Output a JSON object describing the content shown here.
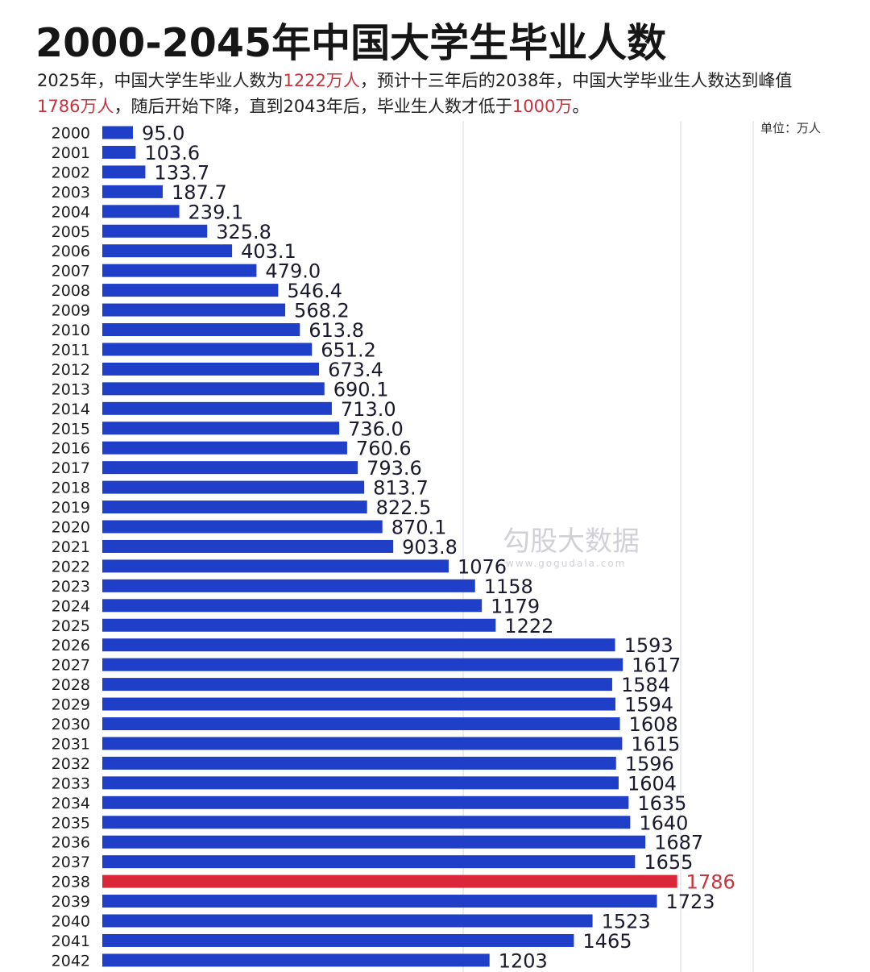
{
  "title": "2000-2045年中国大学生毕业人数",
  "subtitle": {
    "p1": "2025年，中国大学生毕业人数为",
    "h1": "1222万人",
    "p2": "，预计十三年后的2038年，中国大学毕业生人数达到峰值",
    "h2": "1786万人",
    "p3": "，随后开始下降，直到2043年后，毕业生人数才低于",
    "h3": "1000万",
    "p4": "。"
  },
  "unit": "单位：万人",
  "watermark": {
    "text": "勾股大数据",
    "sub": "www.gogudala.com"
  },
  "colors": {
    "bar": "#1f3fc8",
    "highlight": "#d8283a",
    "highlight_text": "#c8333c",
    "grid": "#e3e6ee"
  },
  "chart_data": {
    "type": "bar",
    "orientation": "horizontal",
    "title": "2000-2045年中国大学生毕业人数",
    "unit": "万人",
    "xlim": [
      0,
      2000
    ],
    "grid": true,
    "highlight": "2038",
    "categories": [
      "2000",
      "2001",
      "2002",
      "2003",
      "2004",
      "2005",
      "2006",
      "2007",
      "2008",
      "2009",
      "2010",
      "2011",
      "2012",
      "2013",
      "2014",
      "2015",
      "2016",
      "2017",
      "2018",
      "2019",
      "2020",
      "2021",
      "2022",
      "2023",
      "2024",
      "2025",
      "2026",
      "2027",
      "2028",
      "2029",
      "2030",
      "2031",
      "2032",
      "2033",
      "2034",
      "2035",
      "2036",
      "2037",
      "2038",
      "2039",
      "2040",
      "2041",
      "2042"
    ],
    "values": [
      95.0,
      103.6,
      133.7,
      187.7,
      239.1,
      325.8,
      403.1,
      479.0,
      546.4,
      568.2,
      613.8,
      651.2,
      673.4,
      690.1,
      713.0,
      736.0,
      760.6,
      793.6,
      813.7,
      822.5,
      870.1,
      903.8,
      1076,
      1158,
      1179,
      1222,
      1593,
      1617,
      1584,
      1594,
      1608,
      1615,
      1596,
      1604,
      1635,
      1640,
      1687,
      1655,
      1786,
      1723,
      1523,
      1465,
      1203
    ],
    "labels": [
      "95.0",
      "103.6",
      "133.7",
      "187.7",
      "239.1",
      "325.8",
      "403.1",
      "479.0",
      "546.4",
      "568.2",
      "613.8",
      "651.2",
      "673.4",
      "690.1",
      "713.0",
      "736.0",
      "760.6",
      "793.6",
      "813.7",
      "822.5",
      "870.1",
      "903.8",
      "1076",
      "1158",
      "1179",
      "1222",
      "1593",
      "1617",
      "1584",
      "1594",
      "1608",
      "1615",
      "1596",
      "1604",
      "1635",
      "1640",
      "1687",
      "1655",
      "1786",
      "1723",
      "1523",
      "1465",
      "1203"
    ]
  }
}
